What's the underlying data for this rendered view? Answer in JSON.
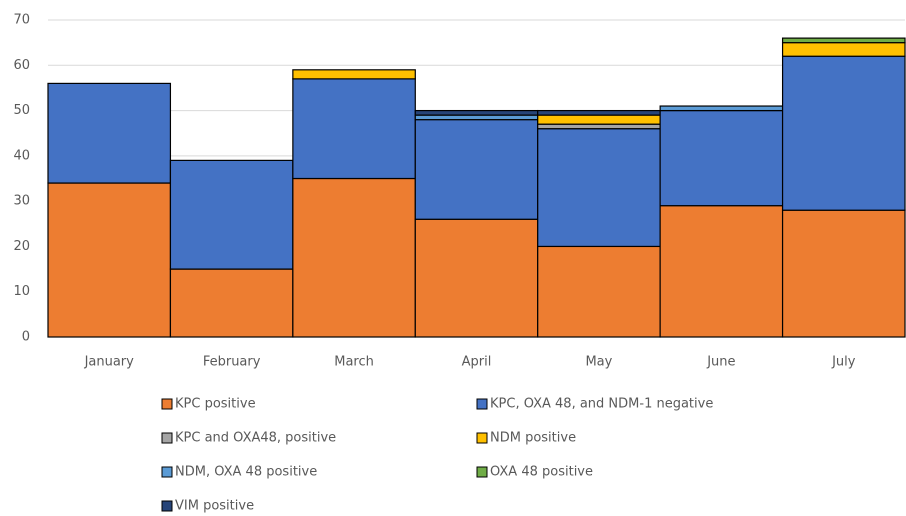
{
  "chart_data": {
    "type": "stacked-bar",
    "categories": [
      "January",
      "February",
      "March",
      "April",
      "May",
      "June",
      "July"
    ],
    "series": [
      {
        "name": "KPC positive",
        "color": "#ed7d31",
        "values": [
          34,
          15,
          35,
          26,
          20,
          29,
          28
        ]
      },
      {
        "name": "KPC, OXA 48, and NDM-1 negative",
        "color": "#4472c4",
        "values": [
          22,
          24,
          22,
          22,
          26,
          21,
          34
        ]
      },
      {
        "name": "KPC and OXA48, positive",
        "color": "#a5a5a5",
        "values": [
          0,
          0,
          0,
          0,
          1,
          0,
          0
        ]
      },
      {
        "name": "NDM positive",
        "color": "#ffc000",
        "values": [
          0,
          0,
          2,
          0,
          2,
          0,
          3
        ]
      },
      {
        "name": "NDM, OXA 48 positive",
        "color": "#5b9bd5",
        "values": [
          0,
          0,
          0,
          1,
          0,
          1,
          0
        ]
      },
      {
        "name": "OXA 48 positive",
        "color": "#70ad47",
        "values": [
          0,
          0,
          0,
          0,
          0,
          0,
          1
        ]
      },
      {
        "name": "VIM positive",
        "color": "#264478",
        "values": [
          0,
          0,
          0,
          1,
          1,
          0,
          0
        ]
      }
    ],
    "ylim": [
      0,
      70
    ],
    "yticks": [
      0,
      10,
      20,
      30,
      40,
      50,
      60,
      70
    ],
    "grid": true
  }
}
